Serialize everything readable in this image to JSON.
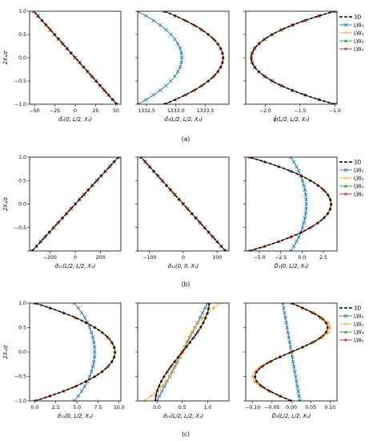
{
  "ylabel": "2X₃/z",
  "legend_entries": [
    {
      "key": "3D",
      "label": "3D",
      "color": "#000000",
      "marker": "none",
      "dash": "4,2"
    },
    {
      "key": "LW2",
      "label": "LW₂",
      "color": "#1f77b4",
      "marker": "x",
      "dash": ""
    },
    {
      "key": "LW3",
      "label": "LW₃",
      "color": "#ff9e1a",
      "marker": "+",
      "dash": ""
    },
    {
      "key": "LW4",
      "label": "LW₄",
      "color": "#2ca02c",
      "marker": "^",
      "dash": ""
    },
    {
      "key": "LW5",
      "label": "LW₅",
      "color": "#d62728",
      "marker": ".",
      "dash": ""
    }
  ],
  "captions": [
    "(a)",
    "(b)",
    "(c)"
  ],
  "chart_data": [
    {
      "type": "line",
      "id": "a1",
      "row": 0,
      "col": 0,
      "xlabel": "d̂₁(0, L/2, X₃)",
      "xlim": [
        -56,
        56
      ],
      "ylim": [
        -1,
        1
      ],
      "xticks": [
        {
          "v": -50,
          "l": "−50"
        },
        {
          "v": -25,
          "l": "−25"
        },
        {
          "v": 0,
          "l": "0"
        },
        {
          "v": 25,
          "l": "25"
        },
        {
          "v": 50,
          "l": "50"
        }
      ],
      "yticks": [
        {
          "v": -1,
          "l": "−1.0"
        },
        {
          "v": -0.5,
          "l": "−0.5"
        },
        {
          "v": 0,
          "l": "0.0"
        },
        {
          "v": 0.5,
          "l": "0.5"
        },
        {
          "v": 1,
          "l": "1.0"
        }
      ],
      "series": [
        {
          "key": "3D",
          "f": "lin",
          "a": -51
        },
        {
          "key": "LW2",
          "f": "lin",
          "a": -51
        },
        {
          "key": "LW3",
          "f": "lin",
          "a": -51
        },
        {
          "key": "LW4",
          "f": "lin",
          "a": -51
        },
        {
          "key": "LW5",
          "f": "lin",
          "a": -51
        }
      ]
    },
    {
      "type": "line",
      "id": "a2",
      "row": 0,
      "col": 1,
      "xlabel": "d̂₃(L/2, L/2, X₃)",
      "xlim": [
        1332.35,
        1333.9
      ],
      "ylim": [
        -1,
        1
      ],
      "xticks": [
        {
          "v": 1332.5,
          "l": "1332.5"
        },
        {
          "v": 1333.0,
          "l": "1333.0"
        },
        {
          "v": 1333.5,
          "l": "1333.5"
        }
      ],
      "yticks": [],
      "series": [
        {
          "key": "3D",
          "f": "quad",
          "c": 1333.8,
          "k": -1.0
        },
        {
          "key": "LW2",
          "f": "quad",
          "c": 1333.1,
          "k": -0.75
        },
        {
          "key": "LW3",
          "f": "quad",
          "c": 1333.8,
          "k": -1.0
        },
        {
          "key": "LW4",
          "f": "quad",
          "c": 1333.8,
          "k": -1.0
        },
        {
          "key": "LW5",
          "f": "quad",
          "c": 1333.8,
          "k": -1.0
        }
      ]
    },
    {
      "type": "line",
      "id": "a3",
      "row": 0,
      "col": 2,
      "xlabel": "ϕ̂(L/2, L/2, X₃)",
      "xlim": [
        -2.28,
        -0.97
      ],
      "ylim": [
        -1,
        1
      ],
      "xticks": [
        {
          "v": -2.0,
          "l": "−2.0"
        },
        {
          "v": -1.5,
          "l": "−1.5"
        },
        {
          "v": -1.0,
          "l": "−1.0"
        }
      ],
      "yticks": [],
      "series": [
        {
          "key": "3D",
          "f": "quad",
          "c": -2.2,
          "k": 1.2
        },
        {
          "key": "LW2",
          "f": "quad",
          "c": -2.2,
          "k": 1.2
        },
        {
          "key": "LW3",
          "f": "quad",
          "c": -2.2,
          "k": 1.2
        },
        {
          "key": "LW4",
          "f": "quad",
          "c": -2.2,
          "k": 1.2
        },
        {
          "key": "LW5",
          "f": "quad",
          "c": -2.2,
          "k": 1.2
        }
      ]
    },
    {
      "type": "line",
      "id": "b1",
      "row": 1,
      "col": 0,
      "xlabel": "σ̂₁₁(L/2, L/2, X₃)",
      "xlim": [
        -360,
        360
      ],
      "ylim": [
        -1,
        1
      ],
      "xticks": [
        {
          "v": -200,
          "l": "−200"
        },
        {
          "v": 0,
          "l": "0"
        },
        {
          "v": 200,
          "l": "200"
        }
      ],
      "yticks": [
        {
          "v": -0.5,
          "l": "−0.5"
        },
        {
          "v": 0,
          "l": "0.0"
        },
        {
          "v": 0.5,
          "l": "0.5"
        },
        {
          "v": 1,
          "l": "1.0"
        }
      ],
      "series": [
        {
          "key": "3D",
          "f": "lin",
          "a": 340
        },
        {
          "key": "LW2",
          "f": "lin",
          "a": 340
        },
        {
          "key": "LW3",
          "f": "lin",
          "a": 340
        },
        {
          "key": "LW4",
          "f": "lin",
          "a": 340
        },
        {
          "key": "LW5",
          "f": "lin",
          "a": 340
        }
      ]
    },
    {
      "type": "line",
      "id": "b2",
      "row": 1,
      "col": 1,
      "xlabel": "σ̂₁₂(0, 0, X₃)",
      "xlim": [
        -135,
        135
      ],
      "ylim": [
        -1,
        1
      ],
      "xticks": [
        {
          "v": -100,
          "l": "−100"
        },
        {
          "v": 0,
          "l": "0"
        },
        {
          "v": 100,
          "l": "100"
        }
      ],
      "yticks": [],
      "series": [
        {
          "key": "3D",
          "f": "lin",
          "a": -125
        },
        {
          "key": "LW2",
          "f": "lin",
          "a": -125
        },
        {
          "key": "LW3",
          "f": "lin",
          "a": -125
        },
        {
          "key": "LW4",
          "f": "lin",
          "a": -125
        },
        {
          "key": "LW5",
          "f": "lin",
          "a": -125
        }
      ]
    },
    {
      "type": "line",
      "id": "b3",
      "row": 1,
      "col": 2,
      "xlabel": "D̂₁(0, L/2, X₃)",
      "xlim": [
        -6.6,
        4.1
      ],
      "ylim": [
        -1,
        1
      ],
      "xticks": [
        {
          "v": -5.0,
          "l": "−5.0"
        },
        {
          "v": -2.5,
          "l": "−2.5"
        },
        {
          "v": 0.0,
          "l": "0.0"
        },
        {
          "v": 2.5,
          "l": "2.5"
        }
      ],
      "yticks": [],
      "series": [
        {
          "key": "3D",
          "f": "quad",
          "c": 3.4,
          "k": -9.6
        },
        {
          "key": "LW2",
          "f": "quad",
          "c": 0.5,
          "k": -1.8
        },
        {
          "key": "LW3",
          "f": "quad",
          "c": 3.4,
          "k": -9.6
        },
        {
          "key": "LW4",
          "f": "quad",
          "c": 3.4,
          "k": -9.6
        },
        {
          "key": "LW5",
          "f": "quad",
          "c": 3.4,
          "k": -9.6
        }
      ]
    },
    {
      "type": "line",
      "id": "c1",
      "row": 2,
      "col": 0,
      "xlabel": "σ̂₁₃(0, L/2, X₃)",
      "xlim": [
        -0.6,
        10.2
      ],
      "ylim": [
        -1,
        1
      ],
      "xticks": [
        {
          "v": 0,
          "l": "0.0"
        },
        {
          "v": 2.5,
          "l": "2.5"
        },
        {
          "v": 5.0,
          "l": "5.0"
        },
        {
          "v": 7.5,
          "l": "7.5"
        },
        {
          "v": 10.0,
          "l": "10.0"
        }
      ],
      "yticks": [
        {
          "v": -1,
          "l": "−1.0"
        },
        {
          "v": -0.5,
          "l": "−0.5"
        },
        {
          "v": 0,
          "l": "0.0"
        },
        {
          "v": 0.5,
          "l": "0.5"
        },
        {
          "v": 1,
          "l": "1.0"
        }
      ],
      "series": [
        {
          "key": "3D",
          "f": "quad",
          "c": 9.5,
          "k": -9.5
        },
        {
          "key": "LW2",
          "f": "quad",
          "c": 7.1,
          "k": -2.4
        },
        {
          "key": "LW3",
          "f": "quad",
          "c": 9.5,
          "k": -9.5
        },
        {
          "key": "LW4",
          "f": "quad",
          "c": 9.5,
          "k": -9.5
        },
        {
          "key": "LW5",
          "f": "quad",
          "c": 9.5,
          "k": -9.5
        }
      ]
    },
    {
      "type": "line",
      "id": "c2",
      "row": 2,
      "col": 1,
      "xlabel": "σ̂₃₃(L/2, L/2, X₃)",
      "xlim": [
        -0.38,
        1.42
      ],
      "ylim": [
        -1,
        1
      ],
      "xticks": [
        {
          "v": 0.0,
          "l": "0.0"
        },
        {
          "v": 0.5,
          "l": "0.5"
        },
        {
          "v": 1.0,
          "l": "1.0"
        }
      ],
      "yticks": [],
      "series": [
        {
          "key": "3D",
          "f": "cubic",
          "a": 0.5,
          "b": 0.78,
          "d": -0.25
        },
        {
          "key": "LW2",
          "f": "cubic",
          "a": 0.5,
          "b": 0.5,
          "d": 0
        },
        {
          "key": "LW3",
          "f": "cubic",
          "a": 0.5,
          "b": 0.4,
          "d": 0.35
        },
        {
          "key": "LW4",
          "f": "cubic",
          "a": 0.5,
          "b": 0.78,
          "d": -0.25
        },
        {
          "key": "LW5",
          "f": "cubic",
          "a": 0.5,
          "b": 0.78,
          "d": -0.25
        }
      ]
    },
    {
      "type": "line",
      "id": "c3",
      "row": 2,
      "col": 2,
      "xlabel": "D̂₃(L/2, L/2, X₃)",
      "xlim": [
        -0.118,
        0.118
      ],
      "ylim": [
        -1,
        1
      ],
      "xticks": [
        {
          "v": -0.1,
          "l": "−0.10"
        },
        {
          "v": -0.05,
          "l": "−0.05"
        },
        {
          "v": 0.0,
          "l": "0.00"
        },
        {
          "v": 0.05,
          "l": "0.05"
        },
        {
          "v": 0.1,
          "l": "0.10"
        }
      ],
      "yticks": [],
      "series": [
        {
          "key": "3D",
          "f": "sinus",
          "a": 0.094
        },
        {
          "key": "LW2",
          "f": "lin",
          "a": -0.022
        },
        {
          "key": "LW3",
          "f": "sinus",
          "a": 0.1
        },
        {
          "key": "LW4",
          "f": "sinus",
          "a": 0.094
        },
        {
          "key": "LW5",
          "f": "sinus",
          "a": 0.094
        }
      ]
    }
  ]
}
